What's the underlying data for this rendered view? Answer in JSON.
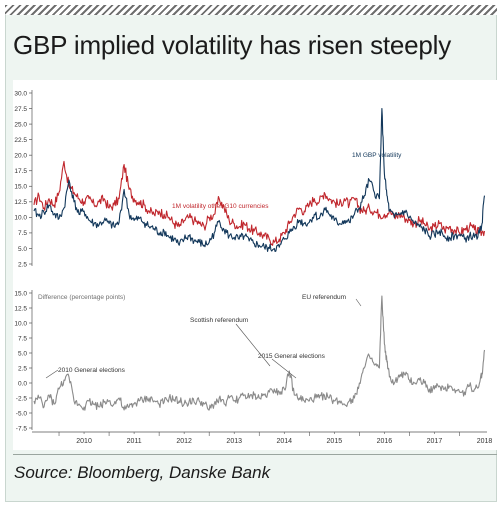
{
  "header": {
    "title": "GBP implied volatility has risen steeply"
  },
  "footer": {
    "source": "Source: Bloomberg, Danske Bank"
  },
  "colors": {
    "gbp": "#12375a",
    "g10": "#c0272d",
    "difference": "#8a8a8a",
    "frame": "#eef5f1"
  },
  "chart_data": [
    {
      "type": "line",
      "title": "",
      "ylim": [
        2.5,
        30.0
      ],
      "yticks": [
        "30.0",
        "27.5",
        "25.0",
        "22.5",
        "20.0",
        "17.5",
        "15.0",
        "12.5",
        "10.0",
        "7.5",
        "5.0",
        "2.5"
      ],
      "x_tick_labels": [
        "2010",
        "2011",
        "2012",
        "2013",
        "2014",
        "2015",
        "2016",
        "2017",
        "2018"
      ],
      "grid": false,
      "annotations": [
        "1M GBP volatility",
        "1M volatility other G10 currencies"
      ],
      "series": [
        {
          "name": "1M GBP volatility",
          "color": "#12375a",
          "x": [
            2009.5,
            2009.6,
            2009.7,
            2009.8,
            2009.9,
            2010.0,
            2010.1,
            2010.2,
            2010.3,
            2010.4,
            2010.5,
            2010.6,
            2010.7,
            2010.8,
            2010.9,
            2011.0,
            2011.1,
            2011.2,
            2011.3,
            2011.4,
            2011.5,
            2011.6,
            2011.7,
            2011.8,
            2011.9,
            2012.0,
            2012.1,
            2012.2,
            2012.3,
            2012.4,
            2012.5,
            2012.6,
            2012.7,
            2012.8,
            2012.9,
            2013.0,
            2013.1,
            2013.2,
            2013.3,
            2013.4,
            2013.5,
            2013.6,
            2013.7,
            2013.8,
            2013.9,
            2014.0,
            2014.1,
            2014.2,
            2014.3,
            2014.4,
            2014.5,
            2014.6,
            2014.7,
            2014.8,
            2014.9,
            2015.0,
            2015.1,
            2015.2,
            2015.3,
            2015.4,
            2015.5,
            2015.6,
            2015.7,
            2015.8,
            2015.9,
            2016.0,
            2016.1,
            2016.2,
            2016.3,
            2016.4,
            2016.45,
            2016.5,
            2016.55,
            2016.6,
            2016.7,
            2016.8,
            2016.9,
            2017.0,
            2017.1,
            2017.2,
            2017.3,
            2017.4,
            2017.5,
            2017.6,
            2017.7,
            2017.8,
            2017.9,
            2018.0,
            2018.1,
            2018.2,
            2018.3,
            2018.4,
            2018.45,
            2018.5
          ],
          "y": [
            11.0,
            10.2,
            10.8,
            12.0,
            10.5,
            9.8,
            11.5,
            16.0,
            12.5,
            10.5,
            11.0,
            9.5,
            9.0,
            8.8,
            9.5,
            9.0,
            8.5,
            9.2,
            14.5,
            10.5,
            9.5,
            9.8,
            9.2,
            8.5,
            8.2,
            7.5,
            7.8,
            6.8,
            6.5,
            5.5,
            6.5,
            7.0,
            6.2,
            6.0,
            5.5,
            6.0,
            7.5,
            9.5,
            8.0,
            7.0,
            6.8,
            6.5,
            7.0,
            6.2,
            5.8,
            5.5,
            5.2,
            5.0,
            5.0,
            5.2,
            6.5,
            7.5,
            8.5,
            9.5,
            9.0,
            9.2,
            10.5,
            9.8,
            11.5,
            10.5,
            9.5,
            9.0,
            9.5,
            9.2,
            10.5,
            11.5,
            13.5,
            16.0,
            14.0,
            13.0,
            27.5,
            17.0,
            13.5,
            11.0,
            10.0,
            10.5,
            11.0,
            10.0,
            9.0,
            8.5,
            8.0,
            7.0,
            7.2,
            7.8,
            7.0,
            6.8,
            7.0,
            7.2,
            6.5,
            7.0,
            6.8,
            7.5,
            9.0,
            13.5
          ]
        },
        {
          "name": "1M volatility other G10 currencies",
          "color": "#c0272d",
          "x": [
            2009.5,
            2009.6,
            2009.7,
            2009.8,
            2009.9,
            2010.0,
            2010.1,
            2010.2,
            2010.3,
            2010.4,
            2010.5,
            2010.6,
            2010.7,
            2010.8,
            2010.9,
            2011.0,
            2011.1,
            2011.2,
            2011.3,
            2011.4,
            2011.5,
            2011.6,
            2011.7,
            2011.8,
            2011.9,
            2012.0,
            2012.1,
            2012.2,
            2012.3,
            2012.4,
            2012.5,
            2012.6,
            2012.7,
            2012.8,
            2012.9,
            2013.0,
            2013.1,
            2013.2,
            2013.3,
            2013.4,
            2013.5,
            2013.6,
            2013.7,
            2013.8,
            2013.9,
            2014.0,
            2014.1,
            2014.2,
            2014.3,
            2014.4,
            2014.5,
            2014.6,
            2014.7,
            2014.8,
            2014.9,
            2015.0,
            2015.1,
            2015.2,
            2015.3,
            2015.4,
            2015.5,
            2015.6,
            2015.7,
            2015.8,
            2015.9,
            2016.0,
            2016.1,
            2016.2,
            2016.3,
            2016.4,
            2016.5,
            2016.6,
            2016.7,
            2016.8,
            2016.9,
            2017.0,
            2017.1,
            2017.2,
            2017.3,
            2017.4,
            2017.5,
            2017.6,
            2017.7,
            2017.8,
            2017.9,
            2018.0,
            2018.1,
            2018.2,
            2018.3,
            2018.4,
            2018.5
          ],
          "y": [
            12.0,
            13.5,
            11.5,
            13.0,
            12.0,
            14.0,
            19.0,
            15.0,
            14.0,
            13.0,
            12.5,
            13.0,
            12.0,
            12.5,
            13.0,
            11.5,
            12.0,
            13.0,
            18.5,
            14.5,
            13.0,
            12.5,
            12.0,
            11.0,
            10.5,
            11.0,
            10.5,
            10.0,
            9.0,
            8.5,
            9.5,
            10.0,
            9.5,
            9.0,
            8.5,
            10.0,
            10.5,
            13.0,
            11.5,
            9.5,
            9.0,
            8.5,
            9.0,
            8.2,
            7.8,
            7.5,
            7.0,
            6.5,
            6.0,
            6.5,
            7.5,
            9.0,
            10.5,
            11.5,
            11.0,
            12.0,
            13.0,
            12.5,
            14.0,
            13.0,
            12.5,
            12.0,
            13.0,
            12.0,
            13.0,
            11.5,
            11.0,
            11.5,
            11.0,
            10.5,
            10.5,
            11.0,
            10.0,
            10.5,
            10.0,
            9.5,
            9.0,
            9.5,
            9.0,
            8.0,
            8.5,
            9.0,
            8.0,
            8.5,
            8.0,
            7.5,
            8.0,
            8.5,
            8.0,
            7.5,
            7.8
          ]
        }
      ]
    },
    {
      "type": "line",
      "title": "",
      "ylabel": "Difference (percentage points)",
      "ylim": [
        -7.5,
        15.0
      ],
      "yticks": [
        "15.0",
        "12.5",
        "10.0",
        "7.5",
        "5.0",
        "2.5",
        "0.0",
        "-2.5",
        "-5.0",
        "-7.5"
      ],
      "x_tick_labels": [
        "2010",
        "2011",
        "2012",
        "2013",
        "2014",
        "2015",
        "2016",
        "2017",
        "2018"
      ],
      "grid": false,
      "annotations": [
        "EU referendum",
        "Scottish referendum",
        "2015 General elections",
        "2010 General elections"
      ],
      "series": [
        {
          "color": "#8a8a8a",
          "x": [
            2009.5,
            2009.6,
            2009.7,
            2009.8,
            2009.9,
            2010.0,
            2010.1,
            2010.2,
            2010.3,
            2010.4,
            2010.5,
            2010.6,
            2010.7,
            2010.8,
            2010.9,
            2011.0,
            2011.1,
            2011.2,
            2011.3,
            2011.4,
            2011.5,
            2011.6,
            2011.7,
            2011.8,
            2011.9,
            2012.0,
            2012.1,
            2012.2,
            2012.3,
            2012.4,
            2012.5,
            2012.6,
            2012.7,
            2012.8,
            2012.9,
            2013.0,
            2013.1,
            2013.2,
            2013.3,
            2013.4,
            2013.5,
            2013.6,
            2013.7,
            2013.8,
            2013.9,
            2014.0,
            2014.1,
            2014.2,
            2014.3,
            2014.4,
            2014.5,
            2014.6,
            2014.7,
            2014.8,
            2014.9,
            2015.0,
            2015.1,
            2015.2,
            2015.3,
            2015.4,
            2015.5,
            2015.6,
            2015.7,
            2015.8,
            2015.9,
            2016.0,
            2016.1,
            2016.2,
            2016.3,
            2016.4,
            2016.45,
            2016.5,
            2016.55,
            2016.6,
            2016.7,
            2016.8,
            2016.9,
            2017.0,
            2017.1,
            2017.2,
            2017.3,
            2017.4,
            2017.5,
            2017.6,
            2017.7,
            2017.8,
            2017.9,
            2018.0,
            2018.1,
            2018.2,
            2018.3,
            2018.4,
            2018.45,
            2018.5
          ],
          "y": [
            -3.0,
            -2.5,
            -4.0,
            -2.0,
            -3.5,
            -1.0,
            0.5,
            1.0,
            -3.0,
            -3.5,
            -4.0,
            -3.0,
            -3.5,
            -4.0,
            -3.2,
            -3.0,
            -3.5,
            -2.5,
            -4.5,
            -4.0,
            -3.5,
            -3.0,
            -2.8,
            -2.5,
            -3.0,
            -3.5,
            -3.2,
            -2.5,
            -2.8,
            -3.0,
            -3.5,
            -3.0,
            -3.2,
            -3.0,
            -3.5,
            -4.5,
            -3.5,
            -2.5,
            -3.5,
            -2.5,
            -3.0,
            -2.5,
            -2.0,
            -2.5,
            -2.0,
            -2.5,
            -2.0,
            -1.5,
            -1.0,
            -1.5,
            -1.0,
            2.0,
            -2.0,
            -2.5,
            -3.0,
            -3.0,
            -2.5,
            -2.5,
            -2.0,
            -2.5,
            -3.0,
            -3.0,
            -3.5,
            -3.0,
            -2.5,
            0.0,
            2.5,
            4.5,
            3.0,
            2.5,
            14.5,
            6.5,
            3.5,
            1.0,
            0.0,
            1.0,
            1.5,
            0.5,
            0.0,
            0.5,
            0.0,
            -1.0,
            -1.0,
            -0.5,
            -1.0,
            -0.5,
            -1.0,
            -1.5,
            -1.5,
            -0.5,
            -1.0,
            0.0,
            1.5,
            5.5
          ]
        }
      ]
    }
  ]
}
